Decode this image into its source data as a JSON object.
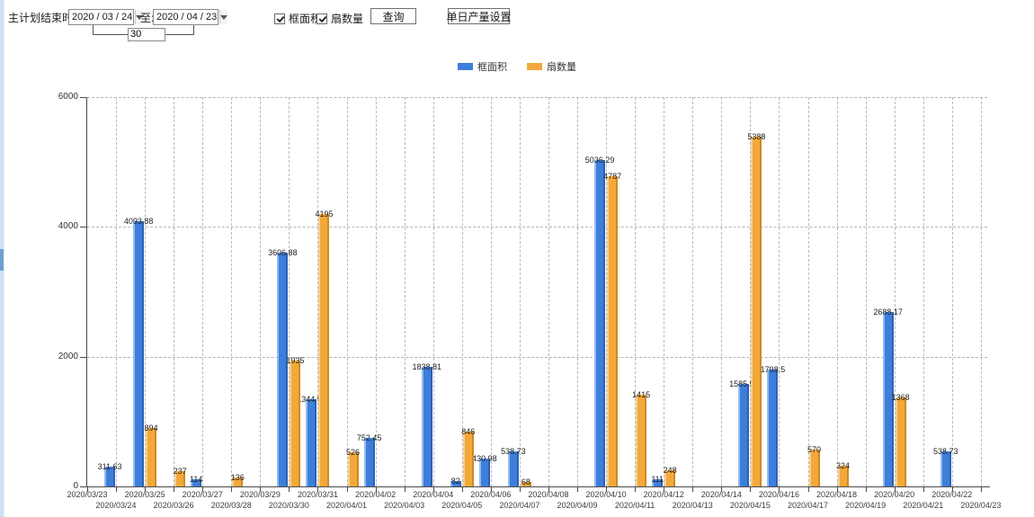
{
  "toolbar": {
    "label_plan_end": "主计划结束时间:",
    "date_from": "2020 / 03 / 24",
    "label_to": "至:",
    "date_to": "2020 / 04 / 23",
    "interval_days": "30",
    "checkbox_frame_area": "框面积",
    "checkbox_fan_count": "扇数量",
    "query_button": "查询",
    "daily_output_button": "单日产量设置"
  },
  "legend": {
    "items": [
      {
        "label": "框面积",
        "color": "#3e7edb"
      },
      {
        "label": "扇数量",
        "color": "#f2a93b"
      }
    ]
  },
  "chart_data": {
    "type": "bar",
    "title": "",
    "xlabel": "",
    "ylabel": "",
    "ylim": [
      0,
      6000
    ],
    "yticks": [
      0,
      2000,
      4000,
      6000
    ],
    "grid": "dashed-horizontal-and-vertical",
    "legend_position": "top-center",
    "x_label_rows": 2,
    "categories": [
      "2020/03/23",
      "2020/03/24",
      "2020/03/25",
      "2020/03/26",
      "2020/03/27",
      "2020/03/28",
      "2020/03/29",
      "2020/03/30",
      "2020/03/31",
      "2020/04/01",
      "2020/04/02",
      "2020/04/03",
      "2020/04/04",
      "2020/04/05",
      "2020/04/06",
      "2020/04/07",
      "2020/04/08",
      "2020/04/09",
      "2020/04/10",
      "2020/04/11",
      "2020/04/12",
      "2020/04/13",
      "2020/04/14",
      "2020/04/15",
      "2020/04/16",
      "2020/04/17",
      "2020/04/18",
      "2020/04/19",
      "2020/04/20",
      "2020/04/21",
      "2020/04/22",
      "2020/04/23"
    ],
    "series": [
      {
        "name": "框面积",
        "key": "frame-area",
        "color": "#3e7edb",
        "color_light": "#93bbee",
        "color_dark": "#2c62b4",
        "values": [
          null,
          311.63,
          4093.88,
          null,
          114,
          null,
          null,
          3606.88,
          1344.95,
          null,
          752.45,
          null,
          1838.81,
          82,
          430.98,
          538.73,
          null,
          null,
          5036.29,
          null,
          111,
          null,
          null,
          1585.96,
          1798.5,
          null,
          null,
          null,
          2688.17,
          null,
          538.73,
          null
        ]
      },
      {
        "name": "扇数量",
        "key": "fan-count",
        "color": "#f2a93b",
        "color_light": "#f8cd8d",
        "color_dark": "#cf8a22",
        "values": [
          null,
          null,
          894,
          237,
          null,
          136,
          null,
          1935,
          4195,
          526,
          null,
          null,
          null,
          846,
          null,
          68,
          null,
          null,
          4787,
          1415,
          248,
          null,
          null,
          5388,
          null,
          570,
          324,
          null,
          1368,
          null,
          null,
          null
        ]
      }
    ]
  }
}
